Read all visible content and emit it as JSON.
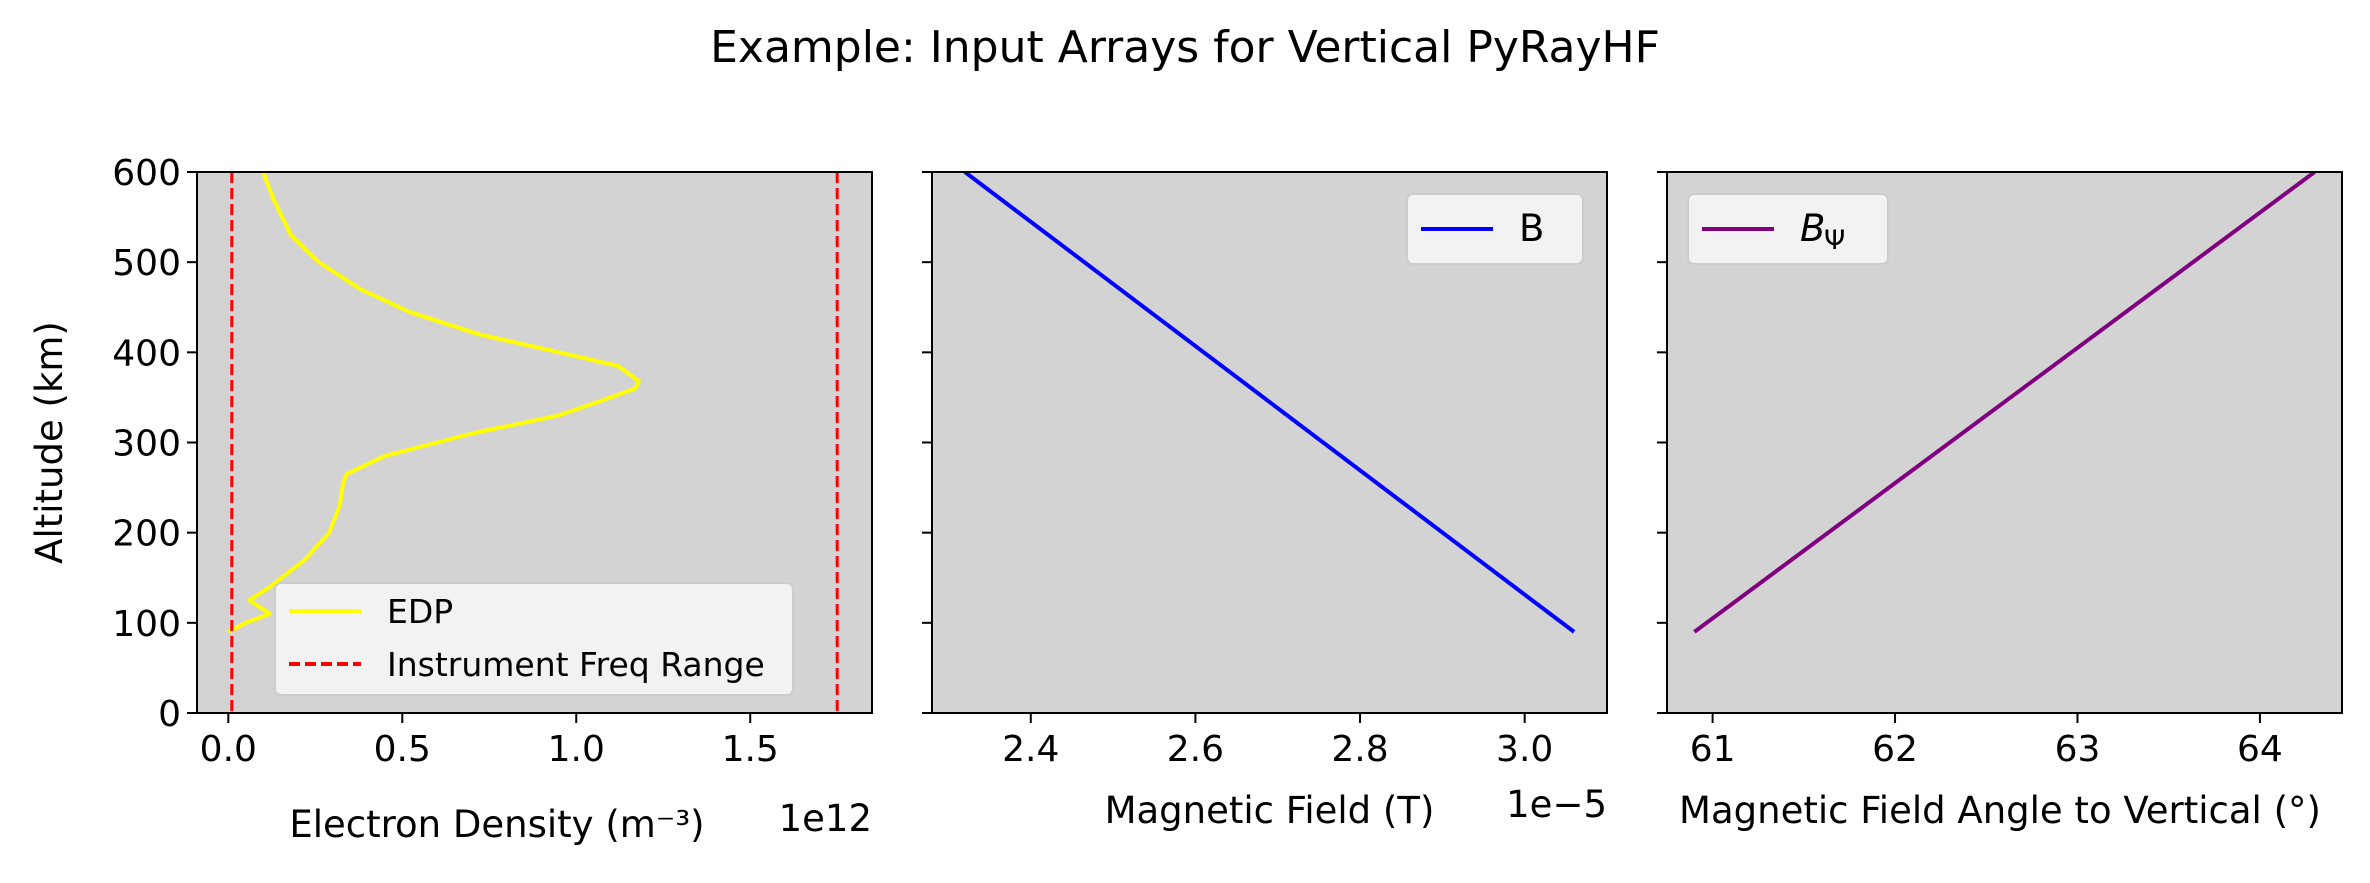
{
  "figure": {
    "title": "Example: Input Arrays for Vertical PyRayHF"
  },
  "chart_data": [
    {
      "type": "line",
      "panel": "electron-density",
      "background": "#d3d3d3",
      "xlabel": "Electron Density (m⁻³)",
      "x_offset_text": "1e12",
      "xlim": [
        -0.09,
        1.85
      ],
      "xticks": [
        0.0,
        0.5,
        1.0,
        1.5
      ],
      "xtick_labels": [
        "0.0",
        "0.5",
        "1.0",
        "1.5"
      ],
      "ylabel": "Altitude (km)",
      "ylim": [
        0,
        600
      ],
      "yticks": [
        0,
        100,
        200,
        300,
        400,
        500,
        600
      ],
      "ytick_labels": [
        "0",
        "100",
        "200",
        "300",
        "400",
        "500",
        "600"
      ],
      "legend_position": "lower-right",
      "series": [
        {
          "name": "EDP",
          "color": "#ffff00",
          "style": "solid",
          "x": [
            0.0,
            0.05,
            0.12,
            0.06,
            0.12,
            0.22,
            0.29,
            0.32,
            0.33,
            0.34,
            0.45,
            0.7,
            0.95,
            1.1,
            1.17,
            1.18,
            1.12,
            0.95,
            0.72,
            0.52,
            0.38,
            0.26,
            0.18,
            0.13,
            0.1
          ],
          "y": [
            90,
            100,
            110,
            125,
            140,
            170,
            200,
            230,
            255,
            265,
            285,
            310,
            330,
            350,
            360,
            368,
            385,
            400,
            420,
            445,
            470,
            500,
            530,
            570,
            600
          ]
        },
        {
          "name": "Instrument Freq Range",
          "color": "#ff0000",
          "style": "dashed",
          "vlines": [
            0.01,
            1.75
          ]
        }
      ]
    },
    {
      "type": "line",
      "panel": "magnetic-field",
      "background": "#d3d3d3",
      "xlabel": "Magnetic Field (T)",
      "x_offset_text": "1e−5",
      "xlim": [
        2.28,
        3.1
      ],
      "xticks": [
        2.4,
        2.6,
        2.8,
        3.0
      ],
      "xtick_labels": [
        "2.4",
        "2.6",
        "2.8",
        "3.0"
      ],
      "ylim": [
        0,
        600
      ],
      "yticks": [
        0,
        100,
        200,
        300,
        400,
        500,
        600
      ],
      "legend_position": "upper-right",
      "series": [
        {
          "name": "B",
          "color": "#0000ff",
          "style": "solid",
          "x": [
            3.06,
            2.32
          ],
          "y": [
            90,
            600
          ]
        }
      ]
    },
    {
      "type": "line",
      "panel": "field-angle",
      "background": "#d3d3d3",
      "xlabel": "Magnetic Field Angle to Vertical (°)",
      "xlim": [
        60.75,
        64.45
      ],
      "xticks": [
        61,
        62,
        63,
        64
      ],
      "xtick_labels": [
        "61",
        "62",
        "63",
        "64"
      ],
      "ylim": [
        0,
        600
      ],
      "yticks": [
        0,
        100,
        200,
        300,
        400,
        500,
        600
      ],
      "legend_position": "upper-left",
      "series": [
        {
          "name": "B",
          "name_subscript": "Ψ",
          "color": "#800080",
          "style": "solid",
          "x": [
            60.9,
            64.3
          ],
          "y": [
            90,
            600
          ]
        }
      ]
    }
  ]
}
